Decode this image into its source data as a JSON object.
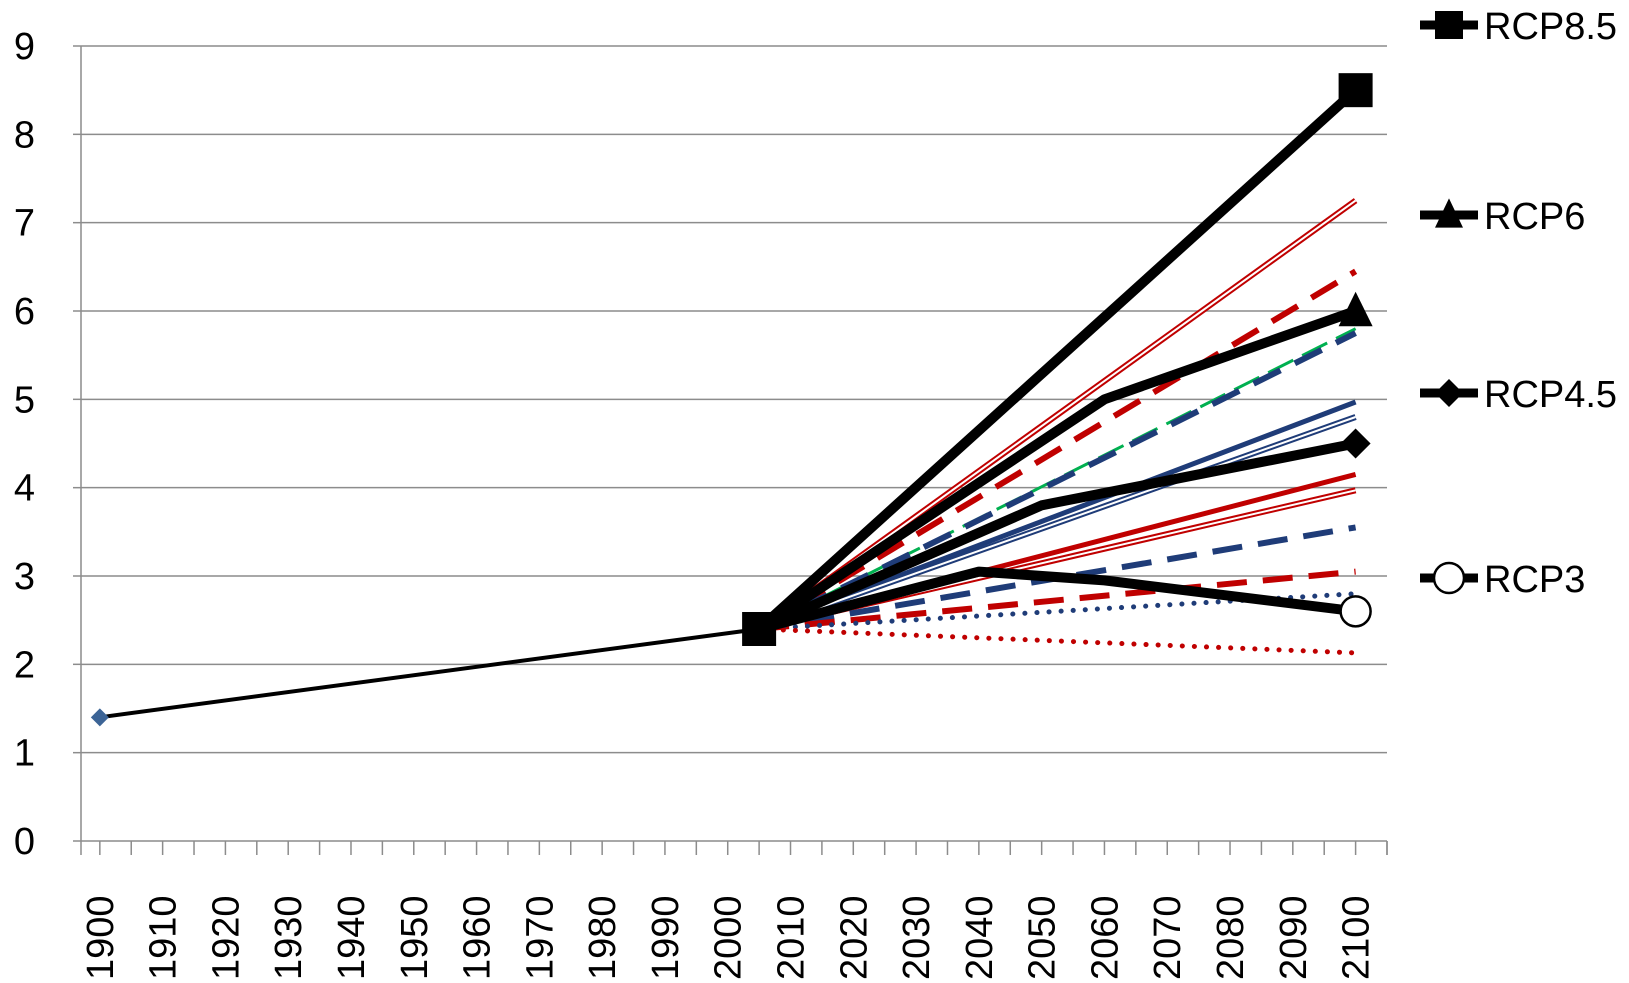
{
  "chart_data": {
    "type": "line",
    "title": "",
    "xlabel": "",
    "ylabel": "",
    "xlim": [
      1897,
      2105
    ],
    "ylim": [
      0,
      9
    ],
    "x_ticks": [
      1900,
      1910,
      1920,
      1930,
      1940,
      1950,
      1960,
      1970,
      1980,
      1990,
      2000,
      2010,
      2020,
      2030,
      2040,
      2050,
      2060,
      2070,
      2080,
      2090,
      2100
    ],
    "y_ticks": [
      0,
      1,
      2,
      3,
      4,
      5,
      6,
      7,
      8,
      9
    ],
    "grid": "horizontal",
    "legend_position": "right",
    "series": [
      {
        "name": "",
        "style": "solid-thin",
        "color": "#000000",
        "marker": "diamond-blue",
        "points": [
          [
            1900,
            1.4
          ],
          [
            2005,
            2.4
          ]
        ]
      },
      {
        "name": "",
        "style": "double",
        "color": "#c00000",
        "points": [
          [
            2005,
            2.4
          ],
          [
            2100,
            7.25
          ]
        ]
      },
      {
        "name": "",
        "style": "dashed-thick",
        "color": "#c00000",
        "points": [
          [
            2005,
            2.4
          ],
          [
            2100,
            6.45
          ]
        ]
      },
      {
        "name": "",
        "style": "dashed-green",
        "color": "#00b050",
        "points": [
          [
            2005,
            2.4
          ],
          [
            2100,
            5.8
          ]
        ]
      },
      {
        "name": "",
        "style": "dashed-thick",
        "color": "#1f3c78",
        "points": [
          [
            2005,
            2.4
          ],
          [
            2100,
            5.75
          ]
        ]
      },
      {
        "name": "",
        "style": "solid-medium",
        "color": "#1f3c78",
        "points": [
          [
            2005,
            2.4
          ],
          [
            2100,
            4.97
          ]
        ]
      },
      {
        "name": "",
        "style": "double",
        "color": "#1f3c78",
        "points": [
          [
            2005,
            2.4
          ],
          [
            2100,
            4.8
          ]
        ]
      },
      {
        "name": "",
        "style": "solid-medium",
        "color": "#c00000",
        "points": [
          [
            2005,
            2.4
          ],
          [
            2100,
            4.15
          ]
        ]
      },
      {
        "name": "",
        "style": "double",
        "color": "#c00000",
        "points": [
          [
            2005,
            2.4
          ],
          [
            2100,
            3.97
          ]
        ]
      },
      {
        "name": "",
        "style": "dashed-thick",
        "color": "#1f3c78",
        "points": [
          [
            2005,
            2.4
          ],
          [
            2100,
            3.55
          ]
        ]
      },
      {
        "name": "",
        "style": "dashed-thick",
        "color": "#c00000",
        "points": [
          [
            2005,
            2.4
          ],
          [
            2100,
            3.05
          ]
        ]
      },
      {
        "name": "",
        "style": "dotted",
        "color": "#1f3c78",
        "points": [
          [
            2005,
            2.4
          ],
          [
            2100,
            2.8
          ]
        ]
      },
      {
        "name": "",
        "style": "dotted",
        "color": "#c00000",
        "points": [
          [
            2005,
            2.4
          ],
          [
            2100,
            2.13
          ]
        ]
      },
      {
        "name": "RCP8.5",
        "style": "rcp",
        "color": "#000000",
        "marker": "square",
        "points": [
          [
            2005,
            2.4
          ],
          [
            2100,
            8.5
          ]
        ]
      },
      {
        "name": "RCP6",
        "style": "rcp",
        "color": "#000000",
        "marker": "triangle",
        "points": [
          [
            2005,
            2.4
          ],
          [
            2060,
            5.0
          ],
          [
            2100,
            6.0
          ]
        ]
      },
      {
        "name": "RCP4.5",
        "style": "rcp",
        "color": "#000000",
        "marker": "diamond",
        "points": [
          [
            2005,
            2.4
          ],
          [
            2050,
            3.8
          ],
          [
            2100,
            4.5
          ]
        ]
      },
      {
        "name": "RCP3",
        "style": "rcp",
        "color": "#000000",
        "marker": "circle-open",
        "points": [
          [
            2005,
            2.4
          ],
          [
            2040,
            3.05
          ],
          [
            2060,
            2.95
          ],
          [
            2100,
            2.6
          ]
        ]
      }
    ],
    "legend": [
      {
        "label": "RCP8.5",
        "marker": "square"
      },
      {
        "label": "RCP6",
        "marker": "triangle"
      },
      {
        "label": "RCP4.5",
        "marker": "diamond"
      },
      {
        "label": "RCP3",
        "marker": "circle-open"
      }
    ]
  }
}
